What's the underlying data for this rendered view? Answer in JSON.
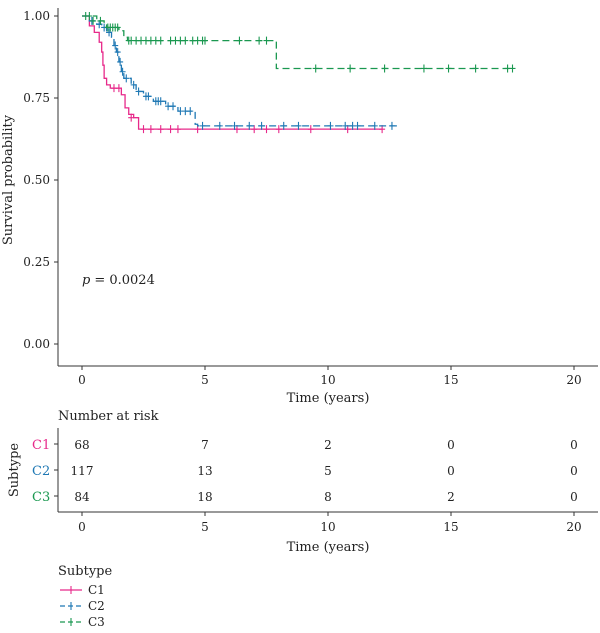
{
  "chart_data": {
    "type": "line",
    "subtype": "kaplan-meier",
    "title": "",
    "xlabel": "Time (years)",
    "ylabel": "Survival probability",
    "xlim": [
      0,
      20
    ],
    "ylim": [
      0,
      1
    ],
    "x_ticks": [
      "0",
      "5",
      "10",
      "15",
      "20"
    ],
    "y_ticks": [
      "0.00",
      "0.25",
      "0.50",
      "0.75",
      "1.00"
    ],
    "grid": false,
    "annotation_p_label": "p",
    "annotation_p_value": "= 0.0024",
    "series": [
      {
        "name": "C1",
        "color": "#e7298a",
        "line_style": "solid",
        "steps": [
          [
            0,
            1.0
          ],
          [
            0.3,
            0.97
          ],
          [
            0.5,
            0.95
          ],
          [
            0.7,
            0.92
          ],
          [
            0.8,
            0.89
          ],
          [
            0.85,
            0.85
          ],
          [
            0.9,
            0.81
          ],
          [
            1.0,
            0.79
          ],
          [
            1.15,
            0.78
          ],
          [
            1.6,
            0.76
          ],
          [
            1.75,
            0.72
          ],
          [
            1.9,
            0.7
          ],
          [
            2.1,
            0.69
          ],
          [
            2.3,
            0.655
          ],
          [
            12.2,
            0.655
          ]
        ],
        "censored": [
          [
            1.3,
            0.78
          ],
          [
            1.5,
            0.78
          ],
          [
            2.0,
            0.69
          ],
          [
            2.5,
            0.655
          ],
          [
            2.8,
            0.655
          ],
          [
            3.2,
            0.655
          ],
          [
            3.6,
            0.655
          ],
          [
            3.9,
            0.655
          ],
          [
            4.7,
            0.655
          ],
          [
            6.3,
            0.655
          ],
          [
            7.0,
            0.655
          ],
          [
            7.5,
            0.655
          ],
          [
            8.0,
            0.655
          ],
          [
            9.3,
            0.655
          ],
          [
            10.8,
            0.655
          ],
          [
            12.2,
            0.655
          ]
        ]
      },
      {
        "name": "C2",
        "color": "#1f78b4",
        "line_style": "dashed",
        "steps": [
          [
            0,
            1.0
          ],
          [
            0.3,
            0.985
          ],
          [
            0.6,
            0.975
          ],
          [
            0.8,
            0.965
          ],
          [
            1.0,
            0.95
          ],
          [
            1.2,
            0.935
          ],
          [
            1.3,
            0.91
          ],
          [
            1.4,
            0.89
          ],
          [
            1.5,
            0.86
          ],
          [
            1.6,
            0.83
          ],
          [
            1.7,
            0.81
          ],
          [
            2.0,
            0.79
          ],
          [
            2.2,
            0.77
          ],
          [
            2.5,
            0.755
          ],
          [
            2.9,
            0.74
          ],
          [
            3.4,
            0.725
          ],
          [
            3.9,
            0.71
          ],
          [
            4.6,
            0.67
          ],
          [
            4.7,
            0.665
          ],
          [
            12.8,
            0.665
          ]
        ],
        "censored": [
          [
            0.4,
            0.985
          ],
          [
            0.7,
            0.975
          ],
          [
            0.9,
            0.965
          ],
          [
            1.1,
            0.95
          ],
          [
            1.35,
            0.91
          ],
          [
            1.45,
            0.89
          ],
          [
            1.55,
            0.86
          ],
          [
            1.65,
            0.83
          ],
          [
            1.8,
            0.81
          ],
          [
            2.1,
            0.79
          ],
          [
            2.3,
            0.77
          ],
          [
            2.6,
            0.755
          ],
          [
            2.7,
            0.755
          ],
          [
            3.0,
            0.74
          ],
          [
            3.1,
            0.74
          ],
          [
            3.2,
            0.74
          ],
          [
            3.5,
            0.725
          ],
          [
            3.7,
            0.725
          ],
          [
            4.0,
            0.71
          ],
          [
            4.2,
            0.71
          ],
          [
            4.4,
            0.71
          ],
          [
            4.9,
            0.665
          ],
          [
            5.6,
            0.665
          ],
          [
            6.2,
            0.665
          ],
          [
            6.8,
            0.665
          ],
          [
            7.3,
            0.665
          ],
          [
            8.2,
            0.665
          ],
          [
            8.8,
            0.665
          ],
          [
            10.1,
            0.665
          ],
          [
            10.7,
            0.665
          ],
          [
            11.0,
            0.665
          ],
          [
            11.2,
            0.665
          ],
          [
            11.9,
            0.665
          ],
          [
            12.6,
            0.665
          ]
        ]
      },
      {
        "name": "C3",
        "color": "#1a9850",
        "line_style": "dashed",
        "steps": [
          [
            0,
            1.0
          ],
          [
            0.6,
            0.985
          ],
          [
            0.9,
            0.975
          ],
          [
            1.0,
            0.965
          ],
          [
            1.5,
            0.955
          ],
          [
            1.7,
            0.935
          ],
          [
            1.85,
            0.925
          ],
          [
            7.9,
            0.925
          ],
          [
            7.9,
            0.84
          ],
          [
            17.5,
            0.84
          ]
        ],
        "censored": [
          [
            0.15,
            1.0
          ],
          [
            0.3,
            1.0
          ],
          [
            0.45,
            0.985
          ],
          [
            0.75,
            0.985
          ],
          [
            1.05,
            0.965
          ],
          [
            1.15,
            0.965
          ],
          [
            1.25,
            0.965
          ],
          [
            1.35,
            0.965
          ],
          [
            1.45,
            0.965
          ],
          [
            1.9,
            0.925
          ],
          [
            2.0,
            0.925
          ],
          [
            2.2,
            0.925
          ],
          [
            2.4,
            0.925
          ],
          [
            2.6,
            0.925
          ],
          [
            2.8,
            0.925
          ],
          [
            3.0,
            0.925
          ],
          [
            3.2,
            0.925
          ],
          [
            3.6,
            0.925
          ],
          [
            3.8,
            0.925
          ],
          [
            4.0,
            0.925
          ],
          [
            4.2,
            0.925
          ],
          [
            4.5,
            0.925
          ],
          [
            4.7,
            0.925
          ],
          [
            4.9,
            0.925
          ],
          [
            5.0,
            0.925
          ],
          [
            6.4,
            0.925
          ],
          [
            7.2,
            0.925
          ],
          [
            7.5,
            0.925
          ],
          [
            9.5,
            0.84
          ],
          [
            10.9,
            0.84
          ],
          [
            12.3,
            0.84
          ],
          [
            13.9,
            0.84
          ],
          [
            14.9,
            0.84
          ],
          [
            16.0,
            0.84
          ],
          [
            17.3,
            0.84
          ],
          [
            17.5,
            0.84
          ]
        ]
      }
    ],
    "risk_table": {
      "title": "Number at risk",
      "group_label": "Subtype",
      "times": [
        0,
        5,
        10,
        15,
        20
      ],
      "rows": [
        {
          "name": "C1",
          "counts": [
            "68",
            "7",
            "2",
            "0",
            "0"
          ]
        },
        {
          "name": "C2",
          "counts": [
            "117",
            "13",
            "5",
            "0",
            "0"
          ]
        },
        {
          "name": "C3",
          "counts": [
            "84",
            "18",
            "8",
            "2",
            "0"
          ]
        }
      ],
      "xlabel": "Time (years)",
      "x_ticks": [
        "0",
        "5",
        "10",
        "15",
        "20"
      ]
    },
    "legend": {
      "title": "Subtype",
      "position": "bottom-left",
      "items": [
        "C1",
        "C2",
        "C3"
      ]
    }
  }
}
